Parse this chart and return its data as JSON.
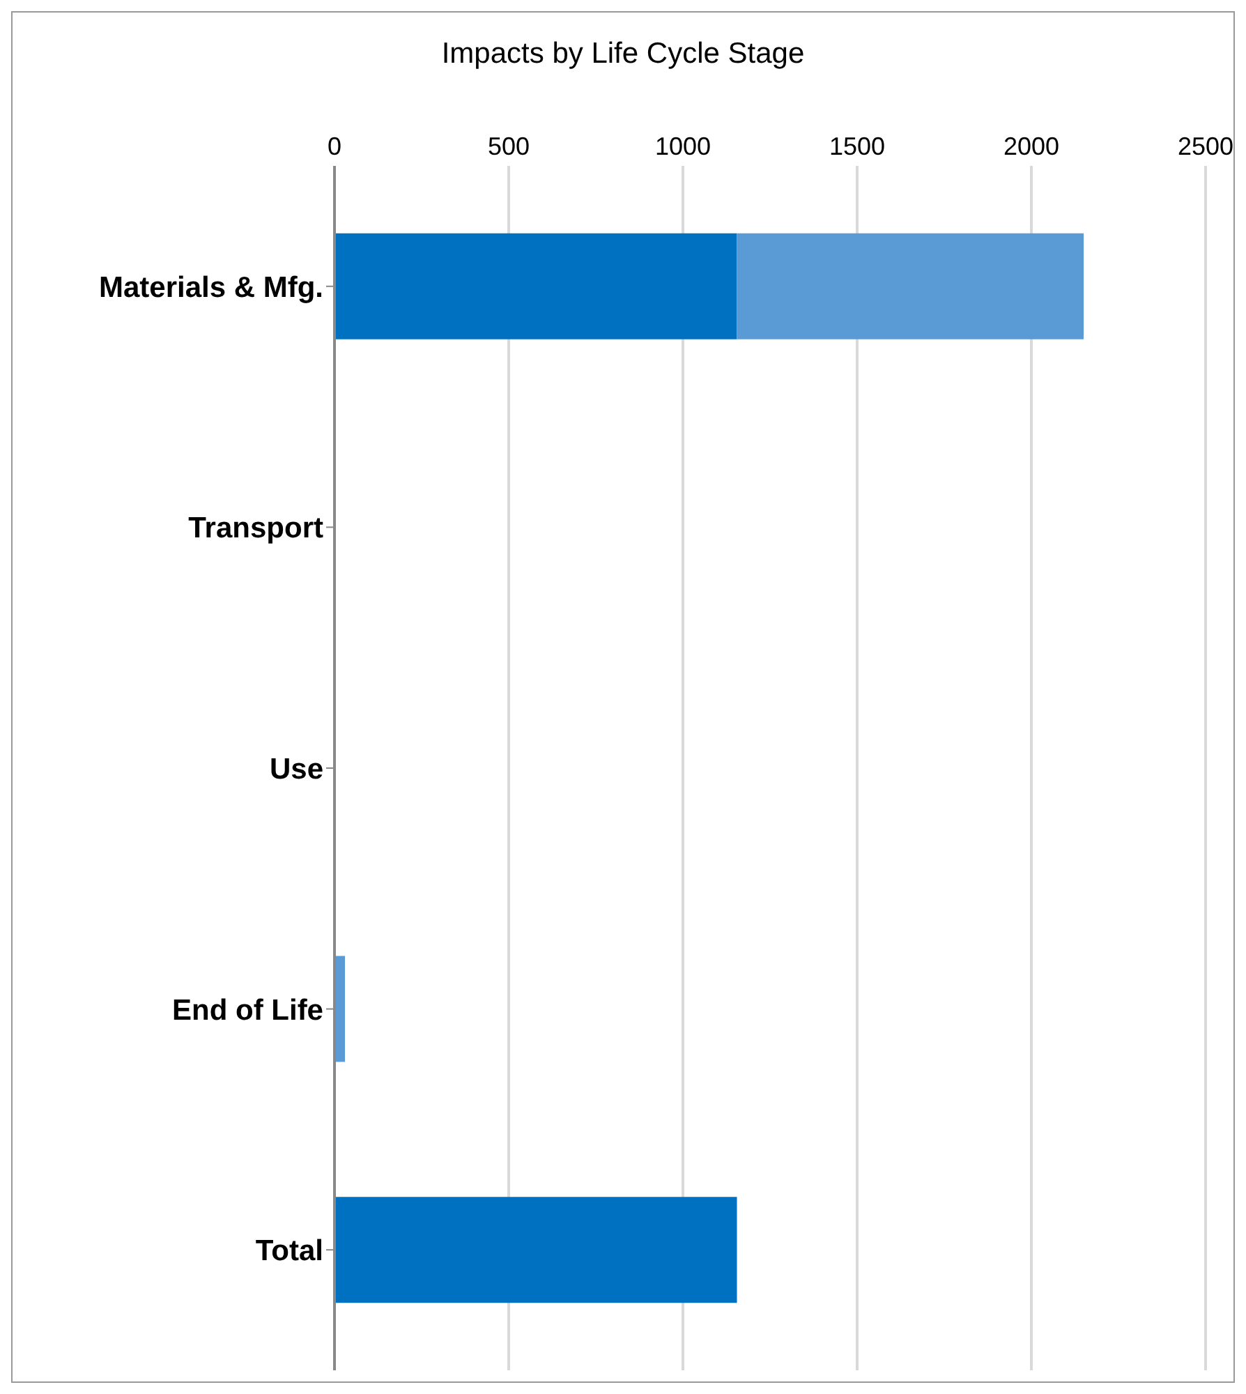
{
  "chart_data": {
    "type": "bar",
    "orientation": "horizontal",
    "stacked": true,
    "title": "Impacts by Life Cycle Stage",
    "categories": [
      "Materials & Mfg.",
      "Transport",
      "Use",
      "End of Life",
      "Total"
    ],
    "series": [
      {
        "color": "#0070c0",
        "values": [
          1155,
          0,
          0,
          0,
          1155
        ]
      },
      {
        "color": "#5b9bd5",
        "values": [
          995,
          0,
          0,
          30,
          0
        ]
      }
    ],
    "xlim": [
      0,
      2500
    ],
    "xticks": [
      0,
      500,
      1000,
      1500,
      2000,
      2500
    ],
    "grid": "x",
    "legend": false
  }
}
